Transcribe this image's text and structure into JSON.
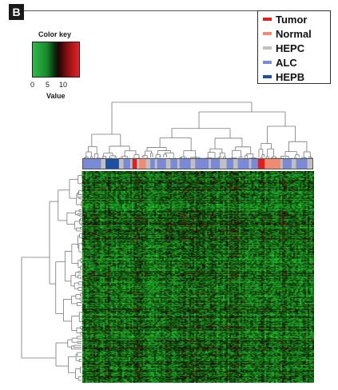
{
  "panel": {
    "letter": "B"
  },
  "color_key": {
    "title": "Color key",
    "ticks": [
      "0",
      "5",
      "10"
    ],
    "xlabel": "Value",
    "low_color": "#2fb84a",
    "mid_color": "#0b0b0b",
    "high_color": "#e8202a"
  },
  "legend": {
    "items": [
      {
        "label": "Tumor",
        "color": "#e0201c"
      },
      {
        "label": "Normal",
        "color": "#f08a70"
      },
      {
        "label": "HEPC",
        "color": "#c0c0c0"
      },
      {
        "label": "ALC",
        "color": "#7a8ad6"
      },
      {
        "label": "HEPB",
        "color": "#1f4fa0"
      }
    ]
  }
}
